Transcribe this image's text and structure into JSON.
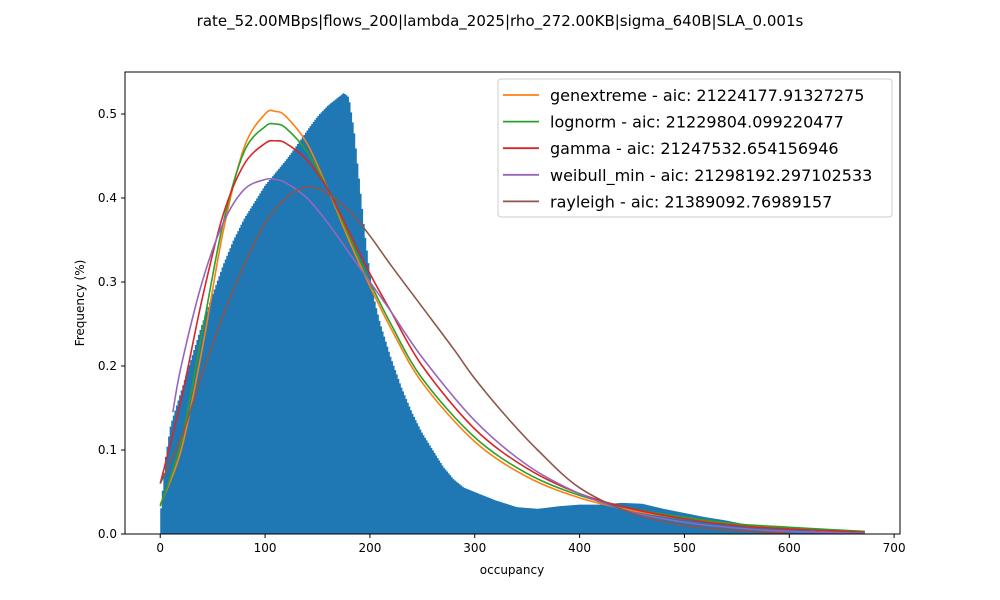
{
  "chart_data": {
    "type": "histogram",
    "title": "rate_52.00MBps|flows_200|lambda_2025|rho_272.00KB|sigma_640B|SLA_0.001s",
    "xlabel": "occupancy",
    "ylabel": "Frequency (%)",
    "xlim": [
      -33.6,
      705.6
    ],
    "ylim": [
      0,
      0.55
    ],
    "xticks": [
      0,
      100,
      200,
      300,
      400,
      500,
      600,
      700
    ],
    "yticks": [
      0.0,
      0.1,
      0.2,
      0.3,
      0.4,
      0.5
    ],
    "legend_position": "top-right",
    "grid": false,
    "histogram": {
      "color": "#1f77b4",
      "x": [
        0,
        5,
        10,
        20,
        30,
        40,
        50,
        60,
        70,
        80,
        90,
        100,
        110,
        120,
        130,
        140,
        150,
        160,
        165,
        170,
        175,
        180,
        185,
        190,
        195,
        200,
        205,
        210,
        215,
        220,
        230,
        240,
        250,
        260,
        270,
        280,
        290,
        300,
        320,
        340,
        360,
        380,
        400,
        420,
        440,
        460,
        480,
        500,
        520,
        540,
        560,
        580,
        600,
        620,
        640,
        672
      ],
      "y": [
        0.02,
        0.09,
        0.13,
        0.17,
        0.21,
        0.25,
        0.285,
        0.32,
        0.35,
        0.375,
        0.395,
        0.415,
        0.43,
        0.445,
        0.462,
        0.48,
        0.497,
        0.51,
        0.515,
        0.52,
        0.525,
        0.52,
        0.48,
        0.42,
        0.36,
        0.31,
        0.275,
        0.25,
        0.23,
        0.21,
        0.175,
        0.145,
        0.12,
        0.1,
        0.08,
        0.065,
        0.055,
        0.05,
        0.04,
        0.032,
        0.03,
        0.033,
        0.035,
        0.035,
        0.037,
        0.036,
        0.03,
        0.025,
        0.02,
        0.016,
        0.011,
        0.008,
        0.006,
        0.004,
        0.003,
        0.002
      ]
    },
    "series": [
      {
        "name": "genextreme - aic: 21224177.91327275",
        "color": "#ff7f0e",
        "x": [
          0,
          20,
          40,
          60,
          80,
          100,
          110,
          120,
          140,
          160,
          180,
          200,
          220,
          250,
          300,
          350,
          400,
          450,
          500,
          550,
          600,
          672
        ],
        "y": [
          0.035,
          0.1,
          0.22,
          0.36,
          0.46,
          0.5,
          0.503,
          0.497,
          0.465,
          0.41,
          0.35,
          0.295,
          0.245,
          0.18,
          0.11,
          0.068,
          0.043,
          0.028,
          0.018,
          0.011,
          0.007,
          0.003
        ]
      },
      {
        "name": "lognorm - aic: 21229804.099220477",
        "color": "#2ca02c",
        "x": [
          0,
          20,
          40,
          60,
          80,
          100,
          110,
          120,
          140,
          160,
          180,
          200,
          220,
          250,
          300,
          350,
          400,
          450,
          500,
          550,
          600,
          672
        ],
        "y": [
          0.033,
          0.11,
          0.24,
          0.37,
          0.455,
          0.485,
          0.488,
          0.483,
          0.455,
          0.41,
          0.355,
          0.3,
          0.25,
          0.185,
          0.115,
          0.072,
          0.046,
          0.03,
          0.02,
          0.012,
          0.008,
          0.003
        ]
      },
      {
        "name": "gamma - aic: 21247532.654156946",
        "color": "#d62728",
        "x": [
          0,
          20,
          40,
          60,
          80,
          100,
          110,
          120,
          140,
          160,
          180,
          200,
          220,
          250,
          300,
          350,
          400,
          450,
          500,
          550,
          600,
          672
        ],
        "y": [
          0.06,
          0.16,
          0.28,
          0.38,
          0.44,
          0.465,
          0.468,
          0.465,
          0.445,
          0.41,
          0.36,
          0.31,
          0.265,
          0.2,
          0.125,
          0.078,
          0.048,
          0.03,
          0.018,
          0.01,
          0.006,
          0.002
        ]
      },
      {
        "name": "weibull_min - aic: 21298192.297102533",
        "color": "#9467bd",
        "x": [
          12,
          20,
          40,
          60,
          80,
          100,
          110,
          120,
          140,
          160,
          180,
          200,
          220,
          250,
          300,
          350,
          400,
          450,
          500,
          550,
          600,
          672
        ],
        "y": [
          0.145,
          0.2,
          0.3,
          0.37,
          0.41,
          0.422,
          0.422,
          0.418,
          0.4,
          0.37,
          0.335,
          0.3,
          0.265,
          0.21,
          0.135,
          0.082,
          0.048,
          0.026,
          0.014,
          0.007,
          0.003,
          0.001
        ]
      },
      {
        "name": "rayleigh - aic: 21389092.76989157",
        "color": "#8c564b",
        "x": [
          0,
          20,
          40,
          60,
          80,
          100,
          120,
          140,
          160,
          180,
          200,
          220,
          250,
          280,
          300,
          330,
          360,
          400,
          450,
          500,
          550,
          600
        ],
        "y": [
          0.06,
          0.115,
          0.19,
          0.26,
          0.32,
          0.37,
          0.4,
          0.413,
          0.405,
          0.385,
          0.355,
          0.32,
          0.27,
          0.22,
          0.185,
          0.14,
          0.1,
          0.055,
          0.025,
          0.01,
          0.004,
          0.001
        ]
      }
    ]
  }
}
